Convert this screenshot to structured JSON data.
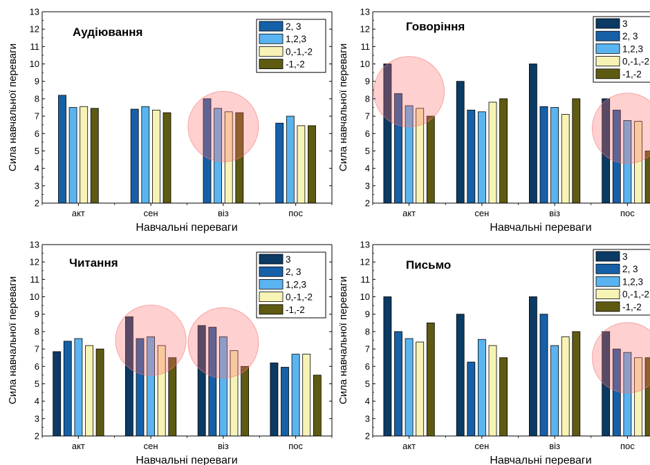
{
  "chart_data": [
    {
      "type": "bar",
      "title": "Аудіювання",
      "xlabel": "Навчальні переваги",
      "ylabel": "Сила навчальної переваги",
      "categories": [
        "акт",
        "сен",
        "віз",
        "пос"
      ],
      "ylim": [
        2,
        13
      ],
      "yticks": [
        2,
        3,
        4,
        5,
        6,
        7,
        8,
        9,
        10,
        11,
        12,
        13
      ],
      "legend_position": "top-right",
      "grid": false,
      "series": [
        {
          "name": "2, 3",
          "color": "#1660a8",
          "values": [
            8.2,
            7.4,
            8.0,
            6.6
          ]
        },
        {
          "name": "1,2,3",
          "color": "#5ab4f0",
          "values": [
            7.5,
            7.55,
            7.45,
            7.0
          ]
        },
        {
          "name": "0,-1,-2",
          "color": "#f7f3b4",
          "values": [
            7.55,
            7.35,
            7.25,
            6.45
          ]
        },
        {
          "name": "-1,-2",
          "color": "#5e5a12",
          "values": [
            7.45,
            7.2,
            7.2,
            6.45
          ]
        }
      ],
      "highlights": [
        {
          "category": "віз",
          "y": 6.4
        }
      ]
    },
    {
      "type": "bar",
      "title": "Говоріння",
      "xlabel": "Навчальні переваги",
      "ylabel": "Сила навчальної переваги",
      "categories": [
        "акт",
        "сен",
        "віз",
        "пос"
      ],
      "ylim": [
        2,
        13
      ],
      "yticks": [
        2,
        3,
        4,
        5,
        6,
        7,
        8,
        9,
        10,
        11,
        12,
        13
      ],
      "legend_position": "top-right",
      "grid": false,
      "series": [
        {
          "name": "3",
          "color": "#0b3b64",
          "values": [
            10.0,
            9.0,
            10.0,
            8.0
          ]
        },
        {
          "name": "2, 3",
          "color": "#1660a8",
          "values": [
            8.3,
            7.35,
            7.55,
            7.35
          ]
        },
        {
          "name": "1,2,3",
          "color": "#5ab4f0",
          "values": [
            7.6,
            7.25,
            7.5,
            6.75
          ]
        },
        {
          "name": "0,-1,-2",
          "color": "#f7f3b4",
          "values": [
            7.45,
            7.8,
            7.1,
            6.7
          ]
        },
        {
          "name": "-1,-2",
          "color": "#5e5a12",
          "values": [
            7.0,
            8.0,
            8.0,
            5.0
          ]
        }
      ],
      "highlights": [
        {
          "category": "акт",
          "y": 8.4
        },
        {
          "category": "пос",
          "y": 6.3
        }
      ]
    },
    {
      "type": "bar",
      "title": "Читання",
      "xlabel": "Навчальні переваги",
      "ylabel": "Сила навчальної переваги",
      "categories": [
        "акт",
        "сен",
        "віз",
        "пос"
      ],
      "ylim": [
        2,
        13
      ],
      "yticks": [
        2,
        3,
        4,
        5,
        6,
        7,
        8,
        9,
        10,
        11,
        12,
        13
      ],
      "legend_position": "top-right",
      "grid": false,
      "series": [
        {
          "name": "3",
          "color": "#0b3b64",
          "values": [
            6.85,
            8.85,
            8.35,
            6.2
          ]
        },
        {
          "name": "2, 3",
          "color": "#1660a8",
          "values": [
            7.45,
            7.6,
            8.25,
            5.95
          ]
        },
        {
          "name": "1,2,3",
          "color": "#5ab4f0",
          "values": [
            7.6,
            7.7,
            7.7,
            6.7
          ]
        },
        {
          "name": "0,-1,-2",
          "color": "#f7f3b4",
          "values": [
            7.2,
            7.2,
            6.9,
            6.7
          ]
        },
        {
          "name": "-1,-2",
          "color": "#5e5a12",
          "values": [
            7.0,
            6.5,
            6.0,
            5.5
          ]
        }
      ],
      "highlights": [
        {
          "category": "сен",
          "y": 7.5
        },
        {
          "category": "віз",
          "y": 7.35
        }
      ]
    },
    {
      "type": "bar",
      "title": "Письмо",
      "xlabel": "Навчальні переваги",
      "ylabel": "Сила навчальної переваги",
      "categories": [
        "акт",
        "сен",
        "віз",
        "пос"
      ],
      "ylim": [
        2,
        13
      ],
      "yticks": [
        2,
        3,
        4,
        5,
        6,
        7,
        8,
        9,
        10,
        11,
        12,
        13
      ],
      "legend_position": "top-right",
      "grid": false,
      "series": [
        {
          "name": "3",
          "color": "#0b3b64",
          "values": [
            10.0,
            9.0,
            10.0,
            8.0
          ]
        },
        {
          "name": "2, 3",
          "color": "#1660a8",
          "values": [
            8.0,
            6.25,
            9.0,
            7.0
          ]
        },
        {
          "name": "1,2,3",
          "color": "#5ab4f0",
          "values": [
            7.6,
            7.55,
            7.2,
            6.8
          ]
        },
        {
          "name": "0,-1,-2",
          "color": "#f7f3b4",
          "values": [
            7.4,
            7.2,
            7.7,
            6.5
          ]
        },
        {
          "name": "-1,-2",
          "color": "#5e5a12",
          "values": [
            8.5,
            6.5,
            8.0,
            6.5
          ]
        }
      ],
      "highlights": [
        {
          "category": "пос",
          "y": 6.5
        }
      ]
    }
  ]
}
